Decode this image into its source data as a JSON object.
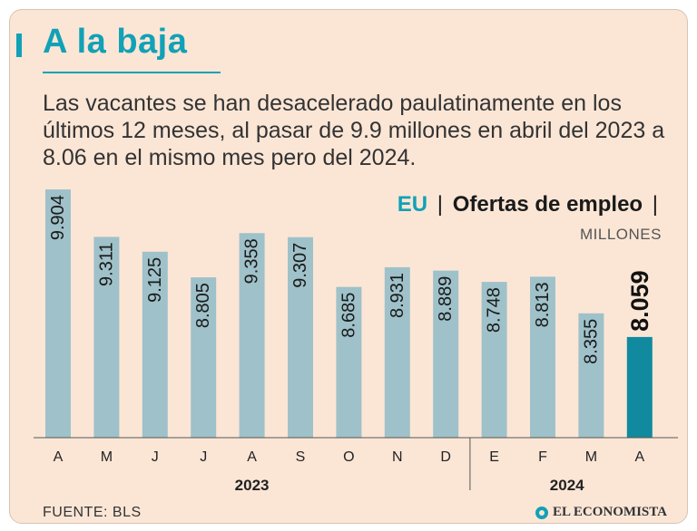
{
  "header": {
    "title": "A la baja",
    "subtitle": "Las vacantes se han desacelerado paulatinamente en los últimos 12 meses, al pasar de 9.9 millones en abril del 2023 a 8.06 en el mismo mes pero del 2024."
  },
  "chart_head": {
    "country": "EU",
    "separator": "|",
    "series_title": "Ofertas de empleo",
    "units": "MILLONES"
  },
  "footer": {
    "source": "FUENTE: BLS",
    "brand": "EL ECONOMISTA"
  },
  "colors": {
    "bar": "#9fc1c9",
    "highlight_bar": "#118aa0",
    "accent": "#12a1b6",
    "background": "#fbe6d6"
  },
  "chart_data": {
    "type": "bar",
    "title": "Ofertas de empleo",
    "ylabel": "Millones",
    "categories": [
      "A",
      "M",
      "J",
      "J",
      "A",
      "S",
      "O",
      "N",
      "D",
      "E",
      "F",
      "M",
      "A"
    ],
    "values": [
      9.904,
      9.311,
      9.125,
      8.805,
      9.358,
      9.307,
      8.685,
      8.931,
      8.889,
      8.748,
      8.813,
      8.355,
      8.059
    ],
    "value_labels": [
      "9.904",
      "9.311",
      "9.125",
      "8.805",
      "9.358",
      "9.307",
      "8.685",
      "8.931",
      "8.889",
      "8.748",
      "8.813",
      "8.355",
      "8.059"
    ],
    "highlight_index": 12,
    "groups": [
      {
        "label": "2023",
        "start": 0,
        "end": 8
      },
      {
        "label": "2024",
        "start": 9,
        "end": 12
      }
    ],
    "ylim": [
      6.8,
      9.95
    ]
  }
}
